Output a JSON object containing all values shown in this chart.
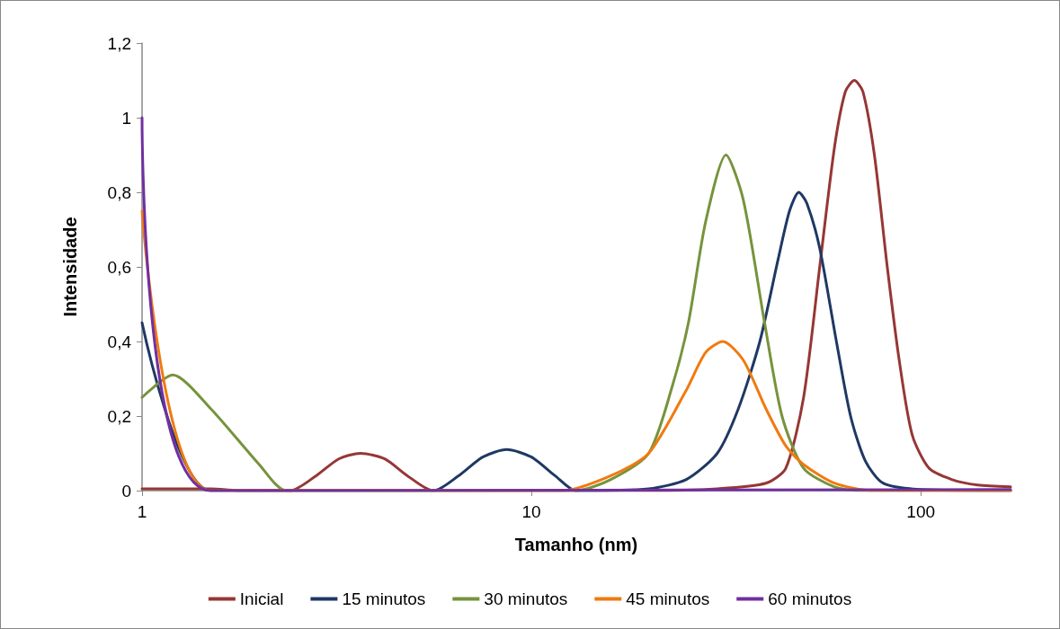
{
  "chart_data": {
    "type": "line",
    "xlabel": "Tamanho (nm)",
    "ylabel": "Intensidade",
    "log": "x",
    "xlim": [
      1,
      170
    ],
    "xticks": [
      1,
      10,
      100
    ],
    "ylim": [
      0,
      1.2
    ],
    "yticks": [
      {
        "value": 0,
        "label": "0"
      },
      {
        "value": 0.2,
        "label": "0,2"
      },
      {
        "value": 0.4,
        "label": "0,4"
      },
      {
        "value": 0.6,
        "label": "0,6"
      },
      {
        "value": 0.8,
        "label": "0,8"
      },
      {
        "value": 1,
        "label": "1"
      },
      {
        "value": 1.2,
        "label": "1,2"
      }
    ],
    "grid": false,
    "legend": "bottom",
    "marker": "none",
    "line_style": "solid",
    "series": [
      {
        "name": "Inicial",
        "color": "#953735",
        "x": [
          1,
          1.5,
          1.8,
          2.4,
          2.8,
          3.2,
          3.64,
          4.2,
          4.8,
          5.6,
          20,
          30,
          40,
          45,
          50,
          55,
          60,
          64,
          67.5,
          71,
          76,
          82,
          88,
          95,
          105,
          120,
          140,
          170
        ],
        "values": [
          0.005,
          0.005,
          0,
          0,
          0.04,
          0.085,
          0.1,
          0.085,
          0.04,
          0,
          0,
          0.005,
          0.02,
          0.06,
          0.25,
          0.6,
          0.92,
          1.07,
          1.1,
          1.07,
          0.9,
          0.6,
          0.35,
          0.15,
          0.06,
          0.03,
          0.015,
          0.01
        ]
      },
      {
        "name": "15 minutos",
        "color": "#1f3864",
        "x": [
          1,
          1.5,
          5.6,
          6.5,
          7.5,
          8.64,
          10,
          11.5,
          13,
          20,
          25,
          30,
          34,
          38.6,
          43,
          46,
          48.6,
          51,
          55,
          60.7,
          66,
          72,
          80,
          100,
          170
        ],
        "values": [
          0.45,
          0,
          0,
          0.04,
          0.09,
          0.11,
          0.09,
          0.04,
          0,
          0.005,
          0.03,
          0.1,
          0.22,
          0.4,
          0.62,
          0.75,
          0.8,
          0.77,
          0.65,
          0.4,
          0.2,
          0.08,
          0.02,
          0.003,
          0
        ]
      },
      {
        "name": "30 minutos",
        "color": "#77933c",
        "x": [
          1,
          1.2,
          1.5,
          2,
          2.35,
          13,
          16,
          20,
          23,
          25.3,
          28,
          31.6,
          35,
          39.7,
          44,
          50,
          60,
          70,
          170
        ],
        "values": [
          0.25,
          0.31,
          0.22,
          0.07,
          0,
          0,
          0.03,
          0.1,
          0.28,
          0.45,
          0.72,
          0.9,
          0.78,
          0.45,
          0.2,
          0.06,
          0.01,
          0,
          0
        ]
      },
      {
        "name": "45 minutos",
        "color": "#f07a10",
        "x": [
          1,
          1.5,
          12,
          16,
          20,
          25,
          28,
          31,
          35,
          40,
          45,
          50,
          60,
          75,
          170
        ],
        "values": [
          0.75,
          0,
          0,
          0.04,
          0.1,
          0.27,
          0.37,
          0.4,
          0.35,
          0.22,
          0.12,
          0.07,
          0.02,
          0,
          0
        ]
      },
      {
        "name": "60 minutos",
        "color": "#7030a0",
        "x": [
          1,
          1.5,
          170
        ],
        "values": [
          1,
          0,
          0.003
        ]
      }
    ]
  }
}
